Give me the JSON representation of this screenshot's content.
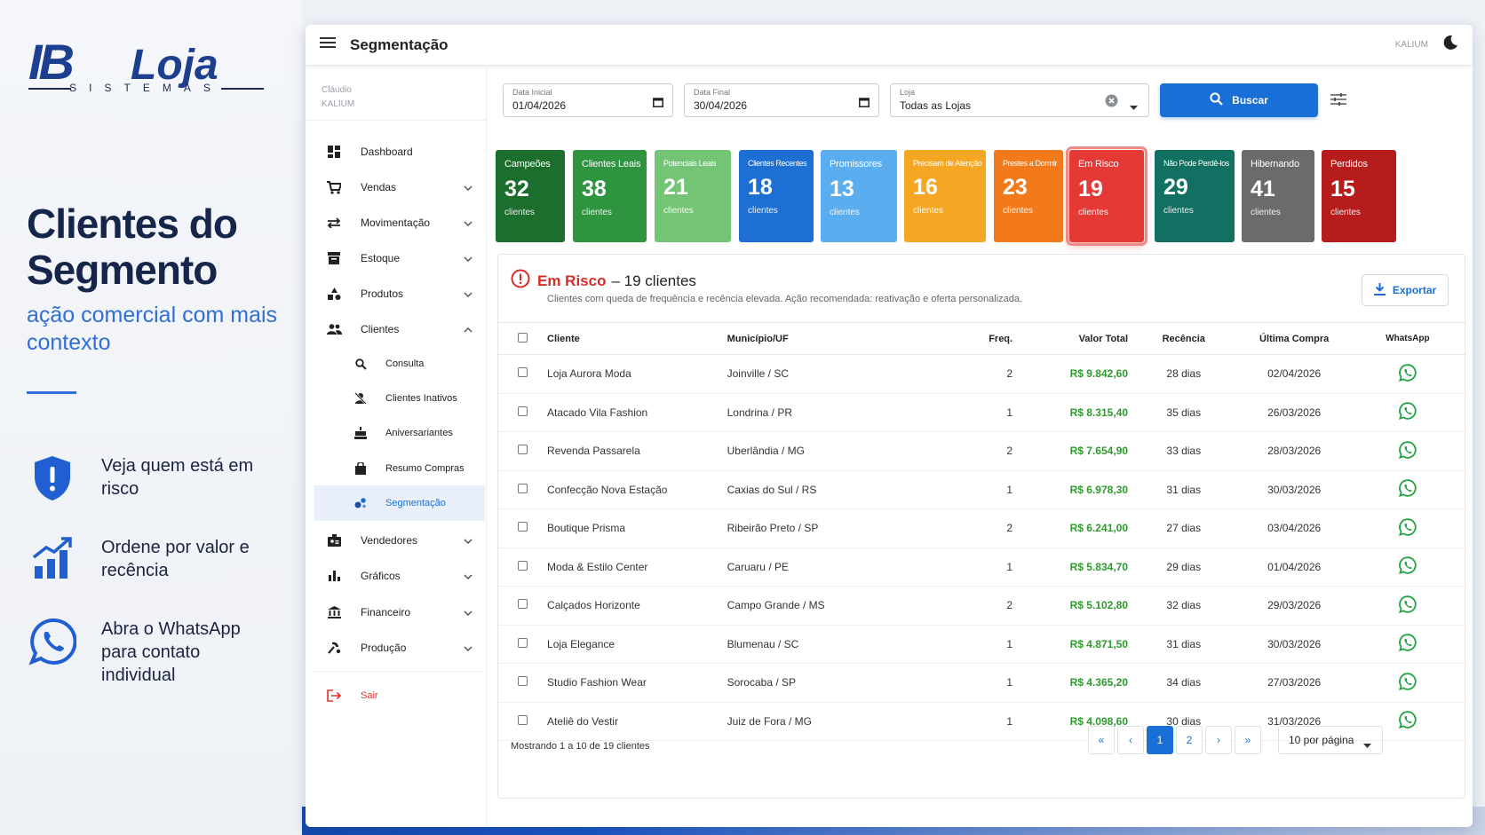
{
  "brand": {
    "logo_ib": "IB",
    "logo_loja": "Loja",
    "logo_sistemas": "SISTEMAS"
  },
  "promo": {
    "headline": "Clientes do Segmento",
    "subline": "ação comercial com mais contexto",
    "features": [
      {
        "icon": "shield-alert-icon",
        "text": "Veja quem está em risco"
      },
      {
        "icon": "bar-chart-growth-icon",
        "text": "Ordene por valor e recência"
      },
      {
        "icon": "whatsapp-icon",
        "text": "Abra o WhatsApp para contato individual"
      }
    ]
  },
  "topbar": {
    "title": "Segmentação",
    "user": "KALIUM"
  },
  "sidebar": {
    "user_name": "Cláudio",
    "user_company": "KALIUM",
    "items": [
      {
        "label": "Dashboard",
        "icon": "dashboard-icon"
      },
      {
        "label": "Vendas",
        "icon": "cart-icon"
      },
      {
        "label": "Movimentação",
        "icon": "swap-icon"
      },
      {
        "label": "Estoque",
        "icon": "inventory-icon"
      },
      {
        "label": "Produtos",
        "icon": "shapes-icon"
      },
      {
        "label": "Clientes",
        "icon": "people-icon"
      },
      {
        "label": "Consulta",
        "icon": "search-icon"
      },
      {
        "label": "Clientes Inativos",
        "icon": "person-off-icon"
      },
      {
        "label": "Aniversariantes",
        "icon": "cake-icon"
      },
      {
        "label": "Resumo Compras",
        "icon": "bag-icon"
      },
      {
        "label": "Segmentação",
        "icon": "bubbles-icon"
      },
      {
        "label": "Vendedores",
        "icon": "badge-icon"
      },
      {
        "label": "Gráficos",
        "icon": "bar-chart-icon"
      },
      {
        "label": "Financeiro",
        "icon": "bank-icon"
      },
      {
        "label": "Produção",
        "icon": "production-icon"
      },
      {
        "label": "Sair",
        "icon": "logout-icon"
      }
    ]
  },
  "filters": {
    "start_label": "Data Inicial",
    "start_value": "01/04/2026",
    "end_label": "Data Final",
    "end_value": "30/04/2026",
    "store_label": "Loja",
    "store_value": "Todas as Lojas",
    "search_button": "Buscar"
  },
  "segments": [
    {
      "label": "Campeões",
      "count": "32",
      "unit": "clientes",
      "color": "#1b6e2c"
    },
    {
      "label": "Clientes Leais",
      "count": "38",
      "unit": "clientes",
      "color": "#2e9440"
    },
    {
      "label": "Potenciais Leais",
      "count": "21",
      "unit": "clientes",
      "color": "#74c476"
    },
    {
      "label": "Clientes Recentes",
      "count": "18",
      "unit": "clientes",
      "color": "#1d6fd3"
    },
    {
      "label": "Promissores",
      "count": "13",
      "unit": "clientes",
      "color": "#5aaef0"
    },
    {
      "label": "Precisam de Atenção",
      "count": "16",
      "unit": "clientes",
      "color": "#f5a623"
    },
    {
      "label": "Prestes a Dormir",
      "count": "23",
      "unit": "clientes",
      "color": "#f27a1a"
    },
    {
      "label": "Em Risco",
      "count": "19",
      "unit": "clientes",
      "color": "#e53935"
    },
    {
      "label": "Não Pode Perdê-los",
      "count": "29",
      "unit": "clientes",
      "color": "#127062"
    },
    {
      "label": "Hibernando",
      "count": "41",
      "unit": "clientes",
      "color": "#6b6b6b"
    },
    {
      "label": "Perdidos",
      "count": "15",
      "unit": "clientes",
      "color": "#b71c1c"
    }
  ],
  "panel": {
    "title": "Em Risco",
    "count_text": "– 19 clientes",
    "description": "Clientes com queda de frequência e recência elevada. Ação recomendada: reativação e oferta personalizada.",
    "export_label": "Exportar"
  },
  "table": {
    "headers": [
      "Cliente",
      "Município/UF",
      "Freq.",
      "Valor Total",
      "Recência",
      "Última Compra",
      "WhatsApp"
    ],
    "rows": [
      [
        "Loja Aurora Moda",
        "Joinville / SC",
        "2",
        "R$ 9.842,60",
        "28 dias",
        "02/04/2026"
      ],
      [
        "Atacado Vila Fashion",
        "Londrina / PR",
        "1",
        "R$ 8.315,40",
        "35 dias",
        "26/03/2026"
      ],
      [
        "Revenda Passarela",
        "Uberlândia / MG",
        "2",
        "R$ 7.654,90",
        "33 dias",
        "28/03/2026"
      ],
      [
        "Confecção Nova Estação",
        "Caxias do Sul / RS",
        "1",
        "R$ 6.978,30",
        "31 dias",
        "30/03/2026"
      ],
      [
        "Boutique Prisma",
        "Ribeirão Preto / SP",
        "2",
        "R$ 6.241,00",
        "27 dias",
        "03/04/2026"
      ],
      [
        "Moda & Estilo Center",
        "Caruaru / PE",
        "1",
        "R$ 5.834,70",
        "29 dias",
        "01/04/2026"
      ],
      [
        "Calçados Horizonte",
        "Campo Grande / MS",
        "2",
        "R$ 5.102,80",
        "32 dias",
        "29/03/2026"
      ],
      [
        "Loja Elegance",
        "Blumenau / SC",
        "1",
        "R$ 4.871,50",
        "31 dias",
        "30/03/2026"
      ],
      [
        "Studio Fashion Wear",
        "Sorocaba / SP",
        "1",
        "R$ 4.365,20",
        "34 dias",
        "27/03/2026"
      ],
      [
        "Ateliê do Vestir",
        "Juiz de Fora / MG",
        "1",
        "R$ 4.098,60",
        "30 dias",
        "31/03/2026"
      ]
    ]
  },
  "pagination": {
    "summary": "Mostrando 1 a 10 de 19 clientes",
    "first": "«",
    "prev": "‹",
    "pages": [
      "1",
      "2"
    ],
    "next": "›",
    "last": "»",
    "per_page": "10 por página"
  }
}
